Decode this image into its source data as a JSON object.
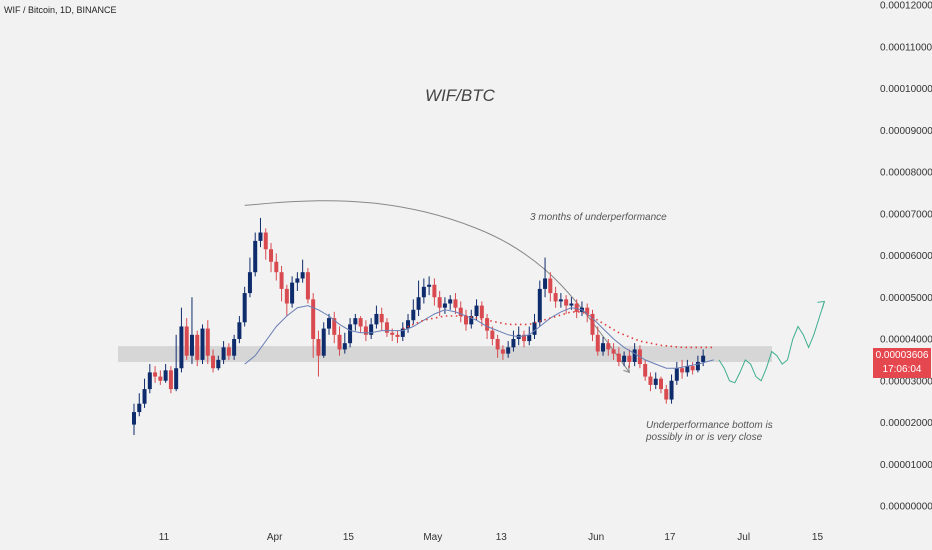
{
  "header": {
    "symbol": "WIF / Bitcoin, 1D, BINANCE"
  },
  "annotations": {
    "title": "WIF/BTC",
    "note_top": "3 months of underperformance",
    "note_bottom_1": "Underperformance bottom is",
    "note_bottom_2": "possibly in or is very close"
  },
  "price_tag": {
    "price": "0.00003606",
    "countdown": "17:06:04"
  },
  "colors": {
    "up": "#0e2b6b",
    "down": "#d84a4f",
    "ma": "#6a7fb5",
    "dotted": "#e03a3a",
    "projection": "#3fae8f",
    "zone": "#d6d6d6"
  },
  "chart_data": {
    "type": "candlestick",
    "ylim": [
      0,
      0.00012
    ],
    "y_ticks": [
      "0.00012000",
      "0.00011000",
      "0.00010000",
      "0.00009000",
      "0.00008000",
      "0.00007000",
      "0.00006000",
      "0.00005000",
      "0.00004000",
      "0.00003000",
      "0.00002000",
      "0.00001000",
      "0.00000000"
    ],
    "x_ticks": [
      {
        "label": "11",
        "day": 0
      },
      {
        "label": "Apr",
        "day": 21
      },
      {
        "label": "15",
        "day": 35
      },
      {
        "label": "May",
        "day": 51
      },
      {
        "label": "13",
        "day": 64
      },
      {
        "label": "Jun",
        "day": 82
      },
      {
        "label": "17",
        "day": 96
      },
      {
        "label": "Jul",
        "day": 110
      },
      {
        "label": "15",
        "day": 124
      }
    ],
    "support_zone": [
      3.45e-05,
      3.83e-05
    ],
    "candles": [
      [
        1.95,
        2.25,
        1.7,
        2.45
      ],
      [
        2.25,
        2.45,
        2.15,
        2.7
      ],
      [
        2.45,
        2.8,
        2.35,
        3.05
      ],
      [
        2.8,
        3.2,
        2.7,
        3.4
      ],
      [
        3.2,
        3.1,
        2.95,
        3.35
      ],
      [
        3.1,
        3.0,
        2.9,
        3.25
      ],
      [
        3.0,
        3.25,
        2.95,
        3.4
      ],
      [
        3.25,
        2.8,
        2.7,
        3.35
      ],
      [
        2.8,
        3.3,
        2.75,
        4.1
      ],
      [
        3.3,
        4.3,
        3.2,
        4.75
      ],
      [
        4.3,
        3.6,
        3.5,
        4.5
      ],
      [
        3.6,
        4.1,
        3.4,
        5.0
      ],
      [
        4.1,
        3.5,
        3.35,
        4.2
      ],
      [
        3.5,
        4.25,
        3.4,
        4.35
      ],
      [
        4.25,
        3.6,
        3.4,
        4.45
      ],
      [
        3.6,
        3.3,
        3.2,
        3.75
      ],
      [
        3.3,
        3.5,
        3.25,
        3.6
      ],
      [
        3.5,
        3.8,
        3.4,
        3.95
      ],
      [
        3.8,
        3.6,
        3.5,
        3.9
      ],
      [
        3.6,
        4.0,
        3.5,
        4.1
      ],
      [
        4.0,
        4.4,
        3.9,
        4.55
      ],
      [
        4.4,
        5.1,
        4.3,
        5.25
      ],
      [
        5.1,
        5.6,
        5.0,
        5.95
      ],
      [
        5.6,
        6.35,
        5.5,
        6.55
      ],
      [
        6.35,
        6.55,
        6.2,
        6.9
      ],
      [
        6.55,
        6.15,
        5.9,
        6.65
      ],
      [
        6.15,
        5.85,
        5.6,
        6.3
      ],
      [
        5.85,
        5.6,
        5.4,
        6.05
      ],
      [
        5.6,
        5.2,
        4.9,
        5.75
      ],
      [
        5.2,
        4.85,
        4.55,
        5.3
      ],
      [
        4.85,
        5.35,
        4.75,
        5.5
      ],
      [
        5.35,
        5.45,
        5.15,
        5.6
      ],
      [
        5.45,
        5.6,
        5.35,
        5.9
      ],
      [
        5.6,
        4.95,
        4.85,
        5.7
      ],
      [
        4.95,
        4.0,
        3.55,
        5.1
      ],
      [
        4.0,
        3.6,
        3.1,
        4.2
      ],
      [
        3.6,
        4.25,
        3.55,
        4.4
      ],
      [
        4.25,
        4.5,
        4.1,
        4.6
      ],
      [
        4.5,
        4.1,
        3.9,
        4.65
      ],
      [
        4.1,
        3.75,
        3.6,
        4.3
      ],
      [
        3.75,
        3.9,
        3.65,
        4.15
      ],
      [
        3.9,
        4.35,
        3.8,
        4.5
      ],
      [
        4.35,
        4.5,
        4.2,
        4.6
      ],
      [
        4.5,
        4.3,
        4.15,
        4.55
      ],
      [
        4.3,
        4.1,
        3.95,
        4.45
      ],
      [
        4.1,
        4.35,
        4.0,
        4.5
      ],
      [
        4.35,
        4.6,
        4.25,
        4.8
      ],
      [
        4.6,
        4.4,
        4.2,
        4.75
      ],
      [
        4.4,
        4.15,
        4.05,
        4.5
      ],
      [
        4.15,
        4.1,
        3.95,
        4.25
      ],
      [
        4.1,
        4.05,
        3.9,
        4.2
      ],
      [
        4.05,
        4.25,
        3.95,
        4.4
      ],
      [
        4.25,
        4.45,
        4.15,
        4.6
      ],
      [
        4.45,
        4.7,
        4.35,
        4.95
      ],
      [
        4.7,
        5.0,
        4.55,
        5.4
      ],
      [
        5.0,
        5.25,
        4.85,
        5.45
      ],
      [
        5.25,
        5.3,
        5.05,
        5.5
      ],
      [
        5.3,
        5.0,
        4.8,
        5.45
      ],
      [
        5.0,
        4.75,
        4.55,
        5.15
      ],
      [
        4.75,
        4.85,
        4.6,
        5.0
      ],
      [
        4.85,
        4.95,
        4.7,
        5.05
      ],
      [
        4.95,
        4.75,
        4.6,
        5.1
      ],
      [
        4.75,
        4.55,
        4.4,
        4.9
      ],
      [
        4.55,
        4.35,
        4.2,
        4.7
      ],
      [
        4.35,
        4.55,
        4.25,
        4.7
      ],
      [
        4.55,
        4.8,
        4.45,
        4.95
      ],
      [
        4.8,
        4.5,
        4.3,
        4.9
      ],
      [
        4.5,
        4.2,
        4.0,
        4.6
      ],
      [
        4.2,
        4.0,
        3.85,
        4.3
      ],
      [
        4.0,
        3.75,
        3.55,
        4.1
      ],
      [
        3.75,
        3.65,
        3.5,
        3.85
      ],
      [
        3.65,
        3.8,
        3.55,
        3.95
      ],
      [
        3.8,
        4.0,
        3.7,
        4.2
      ],
      [
        4.0,
        4.1,
        3.85,
        4.3
      ],
      [
        4.1,
        3.95,
        3.8,
        4.2
      ],
      [
        3.95,
        4.1,
        3.85,
        4.3
      ],
      [
        4.1,
        4.4,
        4.0,
        4.6
      ],
      [
        4.4,
        5.2,
        4.3,
        5.4
      ],
      [
        5.2,
        5.45,
        5.0,
        5.95
      ],
      [
        5.45,
        5.1,
        4.9,
        5.6
      ],
      [
        5.1,
        4.9,
        4.75,
        5.25
      ],
      [
        4.9,
        4.95,
        4.75,
        5.1
      ],
      [
        4.95,
        4.8,
        4.6,
        5.05
      ],
      [
        4.8,
        4.85,
        4.7,
        5.0
      ],
      [
        4.85,
        4.65,
        4.5,
        4.95
      ],
      [
        4.65,
        4.75,
        4.55,
        4.9
      ],
      [
        4.75,
        4.6,
        4.4,
        4.85
      ],
      [
        4.6,
        4.1,
        3.95,
        4.7
      ],
      [
        4.1,
        3.7,
        3.6,
        4.3
      ],
      [
        3.7,
        3.9,
        3.6,
        4.05
      ],
      [
        3.9,
        3.75,
        3.6,
        4.0
      ],
      [
        3.75,
        3.65,
        3.5,
        3.9
      ],
      [
        3.65,
        3.45,
        3.35,
        3.8
      ],
      [
        3.45,
        3.6,
        3.35,
        3.7
      ],
      [
        3.6,
        3.45,
        3.3,
        3.75
      ],
      [
        3.45,
        3.75,
        3.35,
        3.9
      ],
      [
        3.75,
        3.4,
        3.3,
        3.85
      ],
      [
        3.4,
        3.1,
        3.0,
        3.5
      ],
      [
        3.1,
        2.9,
        2.75,
        3.2
      ],
      [
        2.9,
        3.05,
        2.8,
        3.2
      ],
      [
        3.05,
        2.8,
        2.7,
        3.1
      ],
      [
        2.8,
        2.55,
        2.45,
        2.9
      ],
      [
        2.55,
        3.0,
        2.45,
        3.15
      ],
      [
        3.0,
        3.3,
        2.9,
        3.45
      ],
      [
        3.3,
        3.2,
        3.05,
        3.5
      ],
      [
        3.2,
        3.35,
        3.1,
        3.5
      ],
      [
        3.35,
        3.25,
        3.15,
        3.45
      ],
      [
        3.25,
        3.45,
        3.2,
        3.6
      ],
      [
        3.45,
        3.6,
        3.35,
        3.75
      ]
    ],
    "ma_line": [
      [
        21,
        3.4
      ],
      [
        23,
        3.6
      ],
      [
        25,
        3.95
      ],
      [
        27,
        4.3
      ],
      [
        29,
        4.55
      ],
      [
        31,
        4.75
      ],
      [
        33,
        4.8
      ],
      [
        35,
        4.7
      ],
      [
        37,
        4.55
      ],
      [
        39,
        4.35
      ],
      [
        41,
        4.2
      ],
      [
        43,
        4.15
      ],
      [
        45,
        4.15
      ],
      [
        47,
        4.2
      ],
      [
        49,
        4.2
      ],
      [
        51,
        4.2
      ],
      [
        53,
        4.3
      ],
      [
        55,
        4.45
      ],
      [
        57,
        4.6
      ],
      [
        59,
        4.7
      ],
      [
        61,
        4.65
      ],
      [
        63,
        4.55
      ],
      [
        65,
        4.45
      ],
      [
        67,
        4.3
      ],
      [
        69,
        4.2
      ],
      [
        71,
        4.1
      ],
      [
        73,
        4.05
      ],
      [
        75,
        4.1
      ],
      [
        77,
        4.3
      ],
      [
        79,
        4.5
      ],
      [
        81,
        4.65
      ],
      [
        83,
        4.75
      ],
      [
        85,
        4.7
      ],
      [
        87,
        4.5
      ],
      [
        89,
        4.25
      ],
      [
        91,
        4.0
      ],
      [
        93,
        3.8
      ],
      [
        95,
        3.65
      ],
      [
        97,
        3.5
      ],
      [
        99,
        3.4
      ],
      [
        101,
        3.3
      ],
      [
        103,
        3.3
      ],
      [
        105,
        3.35
      ],
      [
        107,
        3.4
      ],
      [
        110,
        3.5
      ]
    ],
    "dotted_curve": [
      [
        51,
        4.25
      ],
      [
        55,
        4.45
      ],
      [
        59,
        4.55
      ],
      [
        63,
        4.55
      ],
      [
        67,
        4.45
      ],
      [
        71,
        4.35
      ],
      [
        75,
        4.35
      ],
      [
        79,
        4.5
      ],
      [
        83,
        4.65
      ],
      [
        85,
        4.65
      ],
      [
        88,
        4.45
      ],
      [
        92,
        4.15
      ],
      [
        96,
        3.95
      ],
      [
        100,
        3.85
      ],
      [
        104,
        3.8
      ],
      [
        108,
        3.8
      ],
      [
        110,
        3.8
      ]
    ],
    "arc": [
      [
        21,
        7.2
      ],
      [
        30,
        7.3
      ],
      [
        40,
        7.32
      ],
      [
        50,
        7.2
      ],
      [
        60,
        6.9
      ],
      [
        70,
        6.4
      ],
      [
        78,
        5.7
      ],
      [
        84,
        4.9
      ],
      [
        90,
        3.9
      ],
      [
        94,
        3.2
      ]
    ],
    "projection": [
      [
        111,
        3.5
      ],
      [
        112,
        3.3
      ],
      [
        113,
        3.0
      ],
      [
        114,
        2.95
      ],
      [
        115,
        3.2
      ],
      [
        116,
        3.5
      ],
      [
        117,
        3.4
      ],
      [
        118,
        3.1
      ],
      [
        119,
        3.0
      ],
      [
        120,
        3.3
      ],
      [
        121,
        3.7
      ],
      [
        122,
        3.6
      ],
      [
        123,
        3.4
      ],
      [
        124,
        3.5
      ],
      [
        125,
        4.0
      ],
      [
        126,
        4.3
      ],
      [
        127,
        4.1
      ],
      [
        128,
        3.8
      ],
      [
        129,
        4.1
      ],
      [
        130,
        4.5
      ],
      [
        131,
        4.9
      ]
    ]
  }
}
